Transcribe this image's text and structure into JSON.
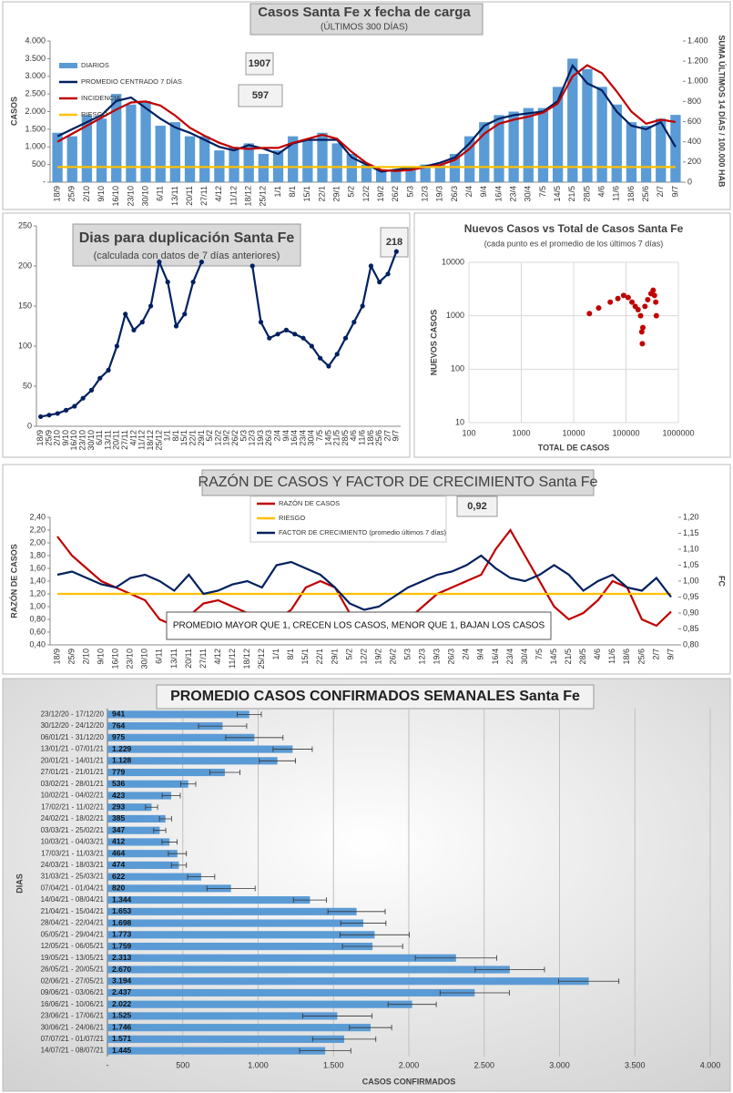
{
  "chart_data": [
    {
      "type": "combo",
      "title": "Casos Santa Fe x fecha de carga",
      "subtitle": "(ÚLTIMOS 300 DÍAS)",
      "ylabel": "CASOS",
      "y2label": "SUMA ÚLTIMOS 14 DÍAS / 100.000 HAB",
      "categories": [
        "18/9",
        "25/9",
        "2/10",
        "9/10",
        "16/10",
        "23/10",
        "30/10",
        "6/11",
        "13/11",
        "20/11",
        "27/11",
        "4/12",
        "11/12",
        "18/12",
        "25/12",
        "1/1",
        "8/1",
        "15/1",
        "22/1",
        "29/1",
        "5/2",
        "12/2",
        "19/2",
        "26/2",
        "5/3",
        "12/3",
        "19/3",
        "26/3",
        "2/4",
        "9/4",
        "16/4",
        "23/4",
        "30/4",
        "7/5",
        "14/5",
        "21/5",
        "28/5",
        "4/6",
        "11/6",
        "18/6",
        "25/6",
        "2/7",
        "9/7"
      ],
      "series": [
        {
          "name": "DIARIOS",
          "kind": "bar",
          "color": "#5b9bd5",
          "values": [
            1400,
            1300,
            1900,
            1800,
            2500,
            2200,
            2300,
            1600,
            1700,
            1300,
            1300,
            900,
            1000,
            1100,
            800,
            900,
            1300,
            1200,
            1400,
            1100,
            800,
            500,
            350,
            300,
            400,
            500,
            500,
            800,
            1300,
            1700,
            1900,
            2000,
            2100,
            2100,
            2700,
            3500,
            3200,
            2700,
            2200,
            1700,
            1600,
            1800,
            1907
          ]
        },
        {
          "name": "PROMEDIO CENTRADO 7 DÍAS",
          "kind": "line",
          "color": "#002060",
          "values": [
            1300,
            1500,
            1700,
            1900,
            2300,
            2400,
            2100,
            1800,
            1550,
            1400,
            1200,
            1000,
            900,
            1050,
            950,
            800,
            1100,
            1200,
            1200,
            1200,
            700,
            500,
            300,
            350,
            400,
            450,
            550,
            700,
            1100,
            1600,
            1800,
            1900,
            1950,
            2000,
            2300,
            3300,
            2800,
            2600,
            2000,
            1600,
            1500,
            1700,
            1000
          ]
        },
        {
          "name": "INCIDENCIA",
          "kind": "line",
          "axis": "y2",
          "color": "#c00000",
          "values": [
            400,
            480,
            560,
            640,
            720,
            790,
            800,
            760,
            660,
            540,
            460,
            390,
            340,
            330,
            340,
            340,
            390,
            430,
            470,
            430,
            300,
            190,
            120,
            110,
            120,
            150,
            170,
            220,
            330,
            480,
            580,
            620,
            650,
            690,
            780,
            1050,
            1160,
            1080,
            900,
            700,
            580,
            620,
            597
          ]
        },
        {
          "name": "RIESGO",
          "kind": "line",
          "axis": "y2",
          "color": "#ffc000",
          "values": [
            150,
            150,
            150,
            150,
            150,
            150,
            150,
            150,
            150,
            150,
            150,
            150,
            150,
            150,
            150,
            150,
            150,
            150,
            150,
            150,
            150,
            150,
            150,
            150,
            150,
            150,
            150,
            150,
            150,
            150,
            150,
            150,
            150,
            150,
            150,
            150,
            150,
            150,
            150,
            150,
            150,
            150,
            150
          ]
        }
      ],
      "ylim": [
        0,
        4000
      ],
      "yticks": [
        {
          "value": 0,
          "label": "-"
        },
        500,
        {
          "value": 1000,
          "label": "1.000"
        },
        {
          "value": 1500,
          "label": "1.500"
        },
        {
          "value": 2000,
          "label": "2.000"
        },
        {
          "value": 2500,
          "label": "2.500"
        },
        {
          "value": 3000,
          "label": "3.000"
        },
        {
          "value": 3500,
          "label": "3.500"
        },
        {
          "value": 4000,
          "label": "4.000"
        }
      ],
      "y2lim": [
        0,
        1400
      ],
      "y2ticks": [
        0,
        200,
        400,
        600,
        800,
        {
          "value": 1000,
          "label": "1.000"
        },
        {
          "value": 1200,
          "label": "1.200"
        },
        {
          "value": 1400,
          "label": "1.400"
        }
      ],
      "grid": false,
      "legend": "upper left",
      "annotations": [
        "1907",
        "597"
      ]
    },
    {
      "type": "line",
      "title": "Dias para duplicación Santa Fe",
      "subtitle": "(calculada con datos de 7 días anteriores)",
      "categories": [
        "18/9",
        "25/9",
        "2/10",
        "9/10",
        "16/10",
        "23/10",
        "30/10",
        "6/11",
        "13/11",
        "20/11",
        "27/11",
        "4/12",
        "11/12",
        "18/12",
        "25/12",
        "1/1",
        "8/1",
        "15/1",
        "22/1",
        "29/1",
        "5/2",
        "12/2",
        "19/2",
        "26/2",
        "5/3",
        "12/3",
        "19/3",
        "26/3",
        "2/4",
        "9/4",
        "16/4",
        "23/4",
        "30/4",
        "7/5",
        "14/5",
        "21/5",
        "28/5",
        "4/6",
        "11/6",
        "18/6",
        "25/6",
        "2/7",
        "9/7"
      ],
      "series": [
        {
          "color": "#002060",
          "values": [
            12,
            14,
            16,
            20,
            25,
            35,
            45,
            60,
            70,
            100,
            140,
            120,
            130,
            150,
            205,
            180,
            125,
            140,
            180,
            205,
            null,
            null,
            null,
            null,
            null,
            200,
            130,
            110,
            115,
            120,
            115,
            110,
            100,
            85,
            75,
            90,
            110,
            130,
            150,
            200,
            180,
            190,
            218
          ]
        }
      ],
      "ylim": [
        0,
        250
      ],
      "yticks": [
        0,
        50,
        100,
        150,
        200,
        250
      ],
      "markers": true,
      "grid": false,
      "annotations": [
        "218"
      ]
    },
    {
      "type": "scatter",
      "title": "Nuevos Casos vs Total de Casos Santa Fe",
      "subtitle": "(cada punto es el promedio de los últimos 7 días)",
      "xlabel": "TOTAL DE CASOS",
      "ylabel": "NUEVOS CASOS",
      "x": [
        20000,
        30000,
        50000,
        70000,
        90000,
        110000,
        130000,
        150000,
        170000,
        190000,
        200000,
        205000,
        210000,
        230000,
        260000,
        300000,
        330000,
        350000,
        370000,
        380000
      ],
      "values": [
        1100,
        1400,
        1800,
        2100,
        2400,
        2200,
        1800,
        1500,
        1300,
        1000,
        500,
        300,
        600,
        1500,
        2000,
        2600,
        3000,
        2400,
        1800,
        1000
      ],
      "color": "#c00000",
      "xscale": "log",
      "yscale": "log",
      "xlim": [
        100,
        1000000
      ],
      "ylim": [
        10,
        10000
      ],
      "xticks": [
        100,
        1000,
        10000,
        100000,
        1000000
      ],
      "yticks": [
        10,
        100,
        1000,
        10000
      ],
      "grid": true
    },
    {
      "type": "line",
      "title": "RAZÓN DE CASOS Y FACTOR DE CRECIMIENTO Santa Fe",
      "ylabel": "RAZÓN DE CASOS",
      "y2label": "FC",
      "categories": [
        "18/9",
        "25/9",
        "2/10",
        "9/10",
        "16/10",
        "23/10",
        "30/10",
        "6/11",
        "13/11",
        "20/11",
        "27/11",
        "4/12",
        "11/12",
        "18/12",
        "25/12",
        "1/1",
        "8/1",
        "15/1",
        "22/1",
        "29/1",
        "5/2",
        "12/2",
        "19/2",
        "26/2",
        "5/3",
        "12/3",
        "19/3",
        "26/3",
        "2/4",
        "9/4",
        "16/4",
        "23/4",
        "30/4",
        "7/5",
        "14/5",
        "21/5",
        "28/5",
        "4/6",
        "11/6",
        "18/6",
        "25/6",
        "2/7",
        "9/7"
      ],
      "series": [
        {
          "name": "RAZÓN DE CASOS",
          "color": "#c00000",
          "values": [
            2.1,
            1.8,
            1.6,
            1.4,
            1.3,
            1.2,
            1.1,
            0.8,
            0.7,
            0.85,
            1.05,
            1.1,
            1.0,
            0.9,
            0.85,
            0.8,
            0.95,
            1.3,
            1.4,
            1.3,
            0.9,
            0.6,
            0.5,
            0.6,
            0.8,
            1.0,
            1.2,
            1.3,
            1.4,
            1.5,
            1.9,
            2.2,
            1.8,
            1.4,
            1.0,
            0.8,
            0.9,
            1.1,
            1.4,
            1.3,
            0.8,
            0.7,
            0.92
          ]
        },
        {
          "name": "RIESGO",
          "color": "#ffc000",
          "values": [
            1.2,
            1.2,
            1.2,
            1.2,
            1.2,
            1.2,
            1.2,
            1.2,
            1.2,
            1.2,
            1.2,
            1.2,
            1.2,
            1.2,
            1.2,
            1.2,
            1.2,
            1.2,
            1.2,
            1.2,
            1.2,
            1.2,
            1.2,
            1.2,
            1.2,
            1.2,
            1.2,
            1.2,
            1.2,
            1.2,
            1.2,
            1.2,
            1.2,
            1.2,
            1.2,
            1.2,
            1.2,
            1.2,
            1.2,
            1.2,
            1.2,
            1.2,
            1.2
          ]
        },
        {
          "name": "FACTOR DE CRECIMIENTO (promedio últimos 7 días)",
          "axis": "y2",
          "color": "#002060",
          "values": [
            1.02,
            1.03,
            1.01,
            0.99,
            0.98,
            1.01,
            1.02,
            1.0,
            0.97,
            1.02,
            0.96,
            0.97,
            0.99,
            1.0,
            0.98,
            1.05,
            1.06,
            1.04,
            1.02,
            0.98,
            0.93,
            0.91,
            0.92,
            0.95,
            0.98,
            1.0,
            1.02,
            1.03,
            1.05,
            1.08,
            1.04,
            1.01,
            1.0,
            1.02,
            1.05,
            1.02,
            0.97,
            1.0,
            1.02,
            0.98,
            0.97,
            1.01,
            0.95
          ]
        }
      ],
      "ylim": [
        0.4,
        2.4
      ],
      "yticks": [
        {
          "value": 0.4,
          "label": "0,40"
        },
        {
          "value": 0.6,
          "label": "0,60"
        },
        {
          "value": 0.8,
          "label": "0,80"
        },
        {
          "value": 1.0,
          "label": "1,00"
        },
        {
          "value": 1.2,
          "label": "1,20"
        },
        {
          "value": 1.4,
          "label": "1,40"
        },
        {
          "value": 1.6,
          "label": "1,60"
        },
        {
          "value": 1.8,
          "label": "1,80"
        },
        {
          "value": 2.0,
          "label": "2,00"
        },
        {
          "value": 2.2,
          "label": "2,20"
        },
        {
          "value": 2.4,
          "label": "2,40"
        }
      ],
      "y2lim": [
        0.8,
        1.2
      ],
      "y2ticks": [
        {
          "value": 0.8,
          "label": "0,80"
        },
        {
          "value": 0.85,
          "label": "0,85"
        },
        {
          "value": 0.9,
          "label": "0,90"
        },
        {
          "value": 0.95,
          "label": "0,95"
        },
        {
          "value": 1.0,
          "label": "1,00"
        },
        {
          "value": 1.05,
          "label": "1,05"
        },
        {
          "value": 1.1,
          "label": "1,10"
        },
        {
          "value": 1.15,
          "label": "1,15"
        },
        {
          "value": 1.2,
          "label": "1,20"
        }
      ],
      "legend": "top",
      "grid": false,
      "annotations": [
        "0,92"
      ],
      "note": "PROMEDIO MAYOR QUE 1, CRECEN LOS CASOS, MENOR QUE 1, BAJAN LOS CASOS"
    },
    {
      "type": "hbar",
      "title": "PROMEDIO CASOS CONFIRMADOS SEMANALES Santa Fe",
      "xlabel": "CASOS CONFIRMADOS",
      "ylabel": "DIAS",
      "categories": [
        "23/12/20 - 17/12/20",
        "30/12/20 - 24/12/20",
        "06/01/21 - 31/12/20",
        "13/01/21 - 07/01/21",
        "20/01/21 - 14/01/21",
        "27/01/21 - 21/01/21",
        "03/02/21 - 28/01/21",
        "10/02/21 - 04/02/21",
        "17/02/21 - 11/02/21",
        "24/02/21 - 18/02/21",
        "03/03/21 - 25/02/21",
        "10/03/21 - 04/03/21",
        "17/03/21 - 11/03/21",
        "24/03/21 - 18/03/21",
        "31/03/21 - 25/03/21",
        "07/04/21 - 01/04/21",
        "14/04/21 - 08/04/21",
        "21/04/21 - 15/04/21",
        "28/04/21 - 22/04/21",
        "05/05/21 - 29/04/21",
        "12/05/21 - 06/05/21",
        "19/05/21 - 13/05/21",
        "26/05/21 - 20/05/21",
        "02/06/21 - 27/05/21",
        "09/06/21 - 03/06/21",
        "16/06/21 - 10/06/21",
        "23/06/21 - 17/06/21",
        "30/06/21 - 24/06/21",
        "07/07/21 - 01/07/21",
        "14/07/21 - 08/07/21"
      ],
      "values": [
        941,
        764,
        975,
        1229,
        1128,
        779,
        536,
        423,
        293,
        385,
        347,
        412,
        464,
        474,
        622,
        820,
        1344,
        1653,
        1698,
        1773,
        1759,
        2313,
        2670,
        3194,
        2437,
        2022,
        1525,
        1746,
        1571,
        1445
      ],
      "value_labels": [
        "941",
        "764",
        "975",
        "1.229",
        "1.128",
        "779",
        "536",
        "423",
        "293",
        "385",
        "347",
        "412",
        "464",
        "474",
        "622",
        "820",
        "1.344",
        "1.653",
        "1.698",
        "1.773",
        "1.759",
        "2.313",
        "2.670",
        "3.194",
        "2.437",
        "2.022",
        "1.525",
        "1.746",
        "1.571",
        "1.445"
      ],
      "errors": [
        80,
        160,
        190,
        130,
        120,
        100,
        50,
        60,
        40,
        40,
        40,
        50,
        60,
        50,
        90,
        160,
        110,
        190,
        150,
        230,
        200,
        270,
        230,
        200,
        230,
        160,
        230,
        140,
        210,
        170
      ],
      "color": "#5b9bd5",
      "xlim": [
        0,
        4000
      ],
      "xticks": [
        {
          "value": 0,
          "label": "-"
        },
        500,
        {
          "value": 1000,
          "label": "1.000"
        },
        {
          "value": 1500,
          "label": "1.500"
        },
        {
          "value": 2000,
          "label": "2.000"
        },
        {
          "value": 2500,
          "label": "2.500"
        },
        {
          "value": 3000,
          "label": "3.000"
        },
        {
          "value": 3500,
          "label": "3.500"
        },
        {
          "value": 4000,
          "label": "4.000"
        }
      ],
      "grid": true
    }
  ]
}
